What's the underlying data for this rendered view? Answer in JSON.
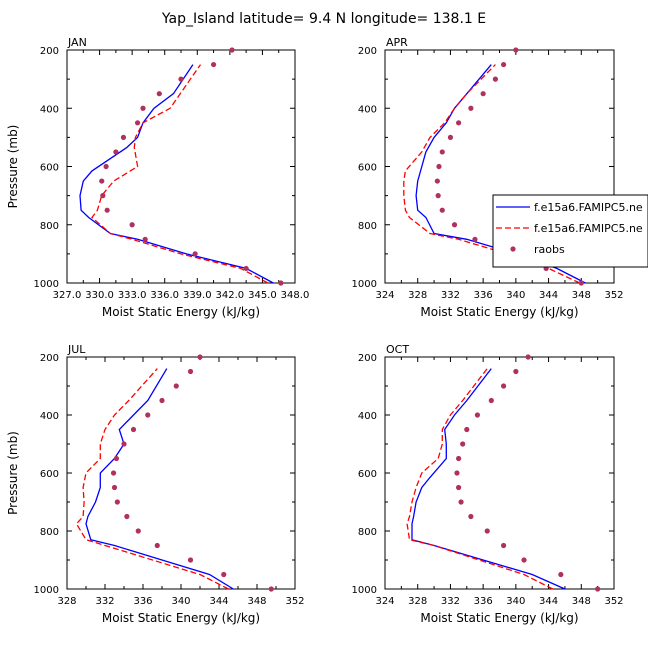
{
  "figure": {
    "title": "Yap_Island  latitude= 9.4 N longitude= 138.1 E",
    "legend": {
      "entries": [
        {
          "label": "f.e15a6.FAMIPC5.ne",
          "style": "solid-line",
          "color": "#0000ff"
        },
        {
          "label": "f.e15a6.FAMIPC5.ne",
          "style": "dashed-line",
          "color": "#ff0000"
        },
        {
          "label": "raobs",
          "style": "marker",
          "color": "#b03060"
        }
      ]
    }
  },
  "chart_data": [
    {
      "type": "line",
      "panel": "JAN",
      "xlabel": "Moist Static Energy (kJ/kg)",
      "ylabel": "Pressure (mb)",
      "xlim": [
        327,
        348
      ],
      "xticks": [
        327.0,
        330.0,
        333.0,
        336.0,
        339.0,
        342.0,
        345.0,
        348.0
      ],
      "xtick_labels": [
        "327.0",
        "330.0",
        "333.0",
        "336.0",
        "339.0",
        "342.0",
        "345.0",
        "348.0"
      ],
      "ylim": [
        200,
        1000
      ],
      "yticks": [
        200,
        400,
        600,
        800,
        1000
      ],
      "y_inverted": true,
      "series": [
        {
          "style": "solid",
          "color": "#0000ff",
          "x": [
            346.0,
            343.5,
            338.0,
            333.5,
            331.0,
            329.0,
            328.3,
            328.2,
            328.5,
            329.3,
            332.5,
            333.5,
            334.0,
            335.0,
            336.8,
            338.6
          ],
          "y": [
            1000,
            950,
            900,
            850,
            830,
            775,
            750,
            700,
            650,
            615,
            535,
            500,
            450,
            400,
            350,
            250
          ]
        },
        {
          "style": "dashed",
          "color": "#ff0000",
          "x": [
            345.5,
            343.0,
            337.5,
            333.0,
            331.0,
            329.3,
            329.8,
            330.2,
            331.3,
            333.5,
            333.2,
            333.3,
            334.0,
            336.5,
            339.3
          ],
          "y": [
            1000,
            950,
            900,
            850,
            830,
            775,
            750,
            700,
            650,
            600,
            535,
            500,
            450,
            400,
            250
          ]
        },
        {
          "style": "marker",
          "color": "#b03060",
          "x": [
            346.7,
            343.5,
            338.8,
            334.2,
            333.0,
            330.7,
            330.3,
            330.2,
            330.6,
            331.5,
            332.2,
            333.5,
            334.0,
            335.5,
            337.5,
            340.5,
            342.2
          ],
          "y": [
            1000,
            950,
            900,
            850,
            800,
            750,
            700,
            650,
            600,
            550,
            500,
            450,
            400,
            350,
            300,
            250,
            200
          ]
        }
      ]
    },
    {
      "type": "line",
      "panel": "APR",
      "xlabel": "Moist Static Energy (kJ/kg)",
      "ylabel": "",
      "xlim": [
        324,
        352
      ],
      "xticks": [
        324,
        328,
        332,
        336,
        340,
        344,
        348,
        352
      ],
      "xtick_labels": [
        "324",
        "328",
        "332",
        "336",
        "340",
        "344",
        "348",
        "352"
      ],
      "ylim": [
        200,
        1000
      ],
      "yticks": [
        200,
        400,
        600,
        800,
        1000
      ],
      "y_inverted": true,
      "series": [
        {
          "style": "solid",
          "color": "#0000ff",
          "x": [
            348.5,
            345.0,
            340.0,
            334.0,
            330.0,
            329.0,
            328.0,
            327.8,
            328.0,
            328.5,
            329.0,
            330.0,
            331.5,
            332.5,
            334.0,
            337.0
          ],
          "y": [
            1000,
            950,
            900,
            850,
            830,
            775,
            750,
            700,
            650,
            600,
            550,
            500,
            450,
            400,
            350,
            250
          ]
        },
        {
          "style": "dashed",
          "color": "#ff0000",
          "x": [
            347.8,
            344.0,
            339.0,
            333.0,
            329.5,
            327.0,
            326.5,
            326.3,
            326.3,
            326.5,
            328.5,
            329.5,
            331.3,
            332.5,
            334.0,
            337.5
          ],
          "y": [
            1000,
            950,
            900,
            850,
            830,
            775,
            750,
            700,
            650,
            615,
            550,
            500,
            450,
            400,
            350,
            250
          ]
        },
        {
          "style": "marker",
          "color": "#b03060",
          "x": [
            348.0,
            343.7,
            339.0,
            335.0,
            332.5,
            331.0,
            330.5,
            330.4,
            330.6,
            331.0,
            332.0,
            333.0,
            334.5,
            336.0,
            337.5,
            338.5,
            340.0
          ],
          "y": [
            1000,
            950,
            900,
            850,
            800,
            750,
            700,
            650,
            600,
            550,
            500,
            450,
            400,
            350,
            300,
            250,
            200
          ]
        }
      ]
    },
    {
      "type": "line",
      "panel": "JUL",
      "xlabel": "Moist Static Energy (kJ/kg)",
      "ylabel": "Pressure (mb)",
      "xlim": [
        328,
        352
      ],
      "xticks": [
        328,
        332,
        336,
        340,
        344,
        348,
        352
      ],
      "xtick_labels": [
        "328",
        "332",
        "336",
        "340",
        "344",
        "348",
        "352"
      ],
      "ylim": [
        200,
        1000
      ],
      "yticks": [
        200,
        400,
        600,
        800,
        1000
      ],
      "y_inverted": true,
      "series": [
        {
          "style": "solid",
          "color": "#0000ff",
          "x": [
            345.5,
            343.0,
            338.0,
            333.0,
            330.5,
            330.0,
            330.2,
            331.0,
            331.5,
            331.5,
            333.0,
            334.0,
            333.5,
            335.0,
            336.5,
            338.5
          ],
          "y": [
            1000,
            950,
            900,
            850,
            830,
            775,
            750,
            700,
            650,
            600,
            550,
            500,
            450,
            400,
            350,
            240
          ]
        },
        {
          "style": "dashed",
          "color": "#ff0000",
          "x": [
            345.0,
            342.0,
            337.0,
            332.0,
            330.0,
            329.0,
            329.7,
            329.8,
            329.7,
            330.0,
            331.5,
            331.5,
            332.0,
            333.0,
            334.5,
            337.5
          ],
          "y": [
            1000,
            950,
            900,
            850,
            830,
            775,
            750,
            700,
            650,
            600,
            550,
            500,
            450,
            400,
            350,
            240
          ]
        },
        {
          "style": "marker",
          "color": "#b03060",
          "x": [
            349.5,
            344.5,
            341.0,
            337.5,
            335.5,
            334.3,
            333.3,
            333.0,
            332.9,
            333.2,
            334.0,
            335.0,
            336.5,
            338.0,
            339.5,
            341.0,
            342.0
          ],
          "y": [
            1000,
            950,
            900,
            850,
            800,
            750,
            700,
            650,
            600,
            550,
            500,
            450,
            400,
            350,
            300,
            250,
            200
          ]
        }
      ]
    },
    {
      "type": "line",
      "panel": "OCT",
      "xlabel": "Moist Static Energy (kJ/kg)",
      "ylabel": "",
      "xlim": [
        324,
        352
      ],
      "xticks": [
        324,
        328,
        332,
        336,
        340,
        344,
        348,
        352
      ],
      "xtick_labels": [
        "324",
        "328",
        "332",
        "336",
        "340",
        "344",
        "348",
        "352"
      ],
      "ylim": [
        200,
        1000
      ],
      "yticks": [
        200,
        400,
        600,
        800,
        1000
      ],
      "y_inverted": true,
      "series": [
        {
          "style": "solid",
          "color": "#0000ff",
          "x": [
            346.0,
            342.0,
            336.0,
            330.0,
            327.3,
            327.3,
            327.5,
            327.8,
            328.5,
            329.5,
            331.5,
            331.5,
            331.3,
            332.5,
            334.0,
            337.0
          ],
          "y": [
            1000,
            950,
            900,
            850,
            830,
            775,
            750,
            700,
            650,
            615,
            550,
            500,
            450,
            400,
            350,
            240
          ]
        },
        {
          "style": "dashed",
          "color": "#ff0000",
          "x": [
            344.5,
            341.0,
            335.5,
            330.0,
            327.0,
            326.7,
            327.0,
            327.3,
            327.8,
            328.5,
            330.5,
            331.0,
            331.0,
            332.0,
            333.5,
            336.5
          ],
          "y": [
            1000,
            950,
            900,
            850,
            830,
            775,
            750,
            700,
            650,
            600,
            550,
            500,
            450,
            400,
            350,
            240
          ]
        },
        {
          "style": "marker",
          "color": "#b03060",
          "x": [
            350.0,
            345.5,
            341.0,
            338.5,
            336.5,
            334.5,
            333.3,
            333.0,
            332.8,
            333.0,
            333.5,
            334.0,
            335.3,
            337.0,
            338.5,
            340.0,
            341.5
          ],
          "y": [
            1000,
            950,
            900,
            850,
            800,
            750,
            700,
            650,
            600,
            550,
            500,
            450,
            400,
            350,
            300,
            250,
            200
          ]
        }
      ]
    }
  ]
}
